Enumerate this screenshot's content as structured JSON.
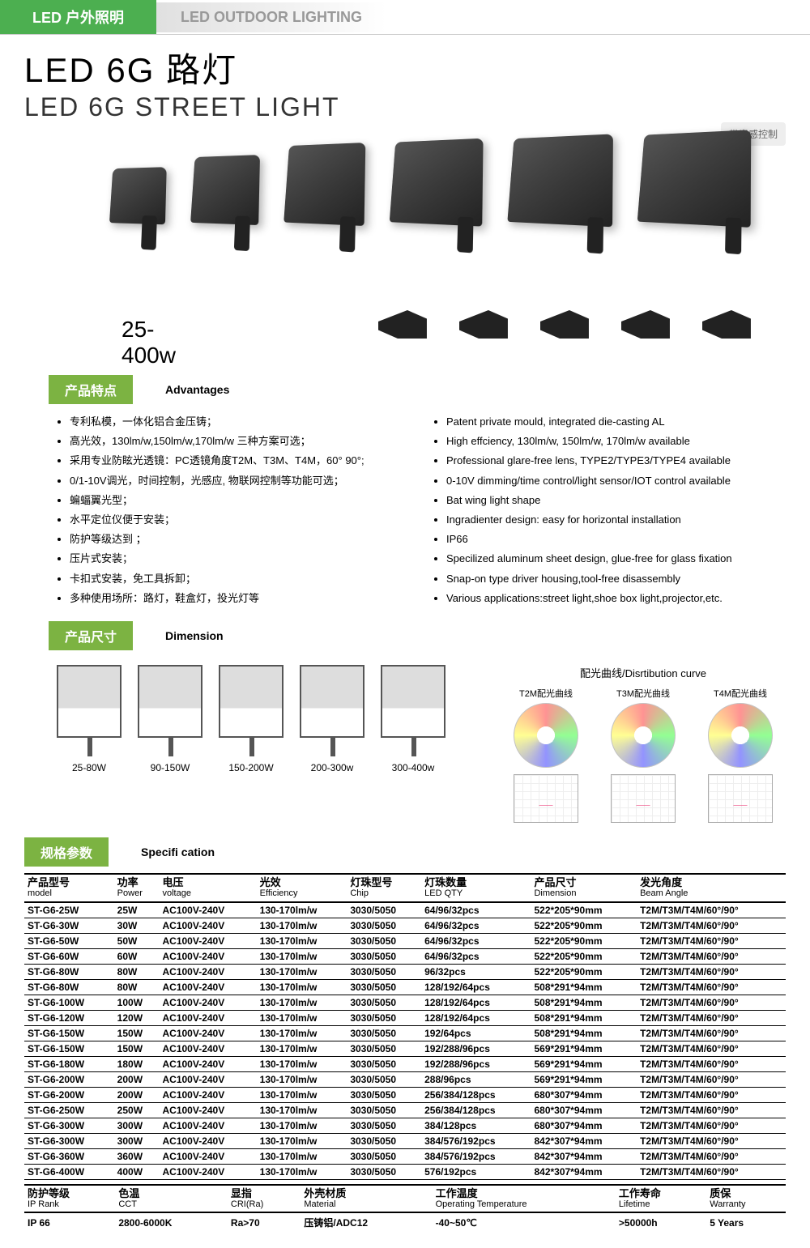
{
  "header": {
    "tab_cn": "LED 户外照明",
    "tab_en": "LED OUTDOOR LIGHTING",
    "title_cn": "LED 6G 路灯",
    "title_en": "LED 6G STREET LIGHT",
    "note": "带光感控制",
    "watt_range": "25-400w"
  },
  "sections": {
    "advantages_cn": "产品特点",
    "advantages_en": "Advantages",
    "dimension_cn": "产品尺寸",
    "dimension_en": "Dimension",
    "spec_cn": "规格参数",
    "spec_en": "Specifi cation"
  },
  "advantages": {
    "cn": [
      "专利私模，一体化铝合金压铸；",
      "高光效，130lm/w,150lm/w,170lm/w 三种方案可选；",
      "采用专业防眩光透镜：PC透镜角度T2M、T3M、T4M，60° 90°;",
      "0/1-10V调光，时间控制，光感应, 物联网控制等功能可选；",
      "蝙蝠翼光型；",
      "水平定位仪便于安装；",
      "防护等级达到    ；",
      "压片式安装；",
      "卡扣式安装，免工具拆卸；",
      "多种使用场所：路灯，鞋盒灯，投光灯等"
    ],
    "en": [
      "Patent private mould, integrated die-casting AL",
      "High effciency, 130lm/w, 150lm/w, 170lm/w available",
      "Professional glare-free lens, TYPE2/TYPE3/TYPE4 available",
      "0-10V dimming/time control/light sensor/IOT control available",
      "Bat wing light shape",
      "Ingradienter design: easy for horizontal installation",
      "IP66",
      "Specilized aluminum sheet design, glue-free for glass fixation",
      "Snap-on type driver housing,tool-free disassembly",
      "Various applications:street light,shoe box light,projector,etc."
    ]
  },
  "dimensions": {
    "labels": [
      "25-80W",
      "90-150W",
      "150-200W",
      "200-300w",
      "300-400w"
    ]
  },
  "distribution": {
    "title": "配光曲线/Disrtibution curve",
    "curves": [
      "T2M配光曲线",
      "T3M配光曲线",
      "T4M配光曲线"
    ]
  },
  "spec": {
    "headers": [
      {
        "cn": "产品型号",
        "en": "model"
      },
      {
        "cn": "功率",
        "en": "Power"
      },
      {
        "cn": "电压",
        "en": "voltage"
      },
      {
        "cn": "光效",
        "en": "Efficiency"
      },
      {
        "cn": "灯珠型号",
        "en": "Chip"
      },
      {
        "cn": "灯珠数量",
        "en": "LED QTY"
      },
      {
        "cn": "产品尺寸",
        "en": "Dimension"
      },
      {
        "cn": "发光角度",
        "en": "Beam Angle"
      }
    ],
    "rows": [
      [
        "ST-G6-25W",
        "25W",
        "AC100V-240V",
        "130-170lm/w",
        "3030/5050",
        "64/96/32pcs",
        "522*205*90mm",
        "T2M/T3M/T4M/60°/90°"
      ],
      [
        "ST-G6-30W",
        "30W",
        "AC100V-240V",
        "130-170lm/w",
        "3030/5050",
        "64/96/32pcs",
        "522*205*90mm",
        "T2M/T3M/T4M/60°/90°"
      ],
      [
        "ST-G6-50W",
        "50W",
        "AC100V-240V",
        "130-170lm/w",
        "3030/5050",
        "64/96/32pcs",
        "522*205*90mm",
        "T2M/T3M/T4M/60°/90°"
      ],
      [
        "ST-G6-60W",
        "60W",
        "AC100V-240V",
        "130-170lm/w",
        "3030/5050",
        "64/96/32pcs",
        "522*205*90mm",
        "T2M/T3M/T4M/60°/90°"
      ],
      [
        "ST-G6-80W",
        "80W",
        "AC100V-240V",
        "130-170lm/w",
        "3030/5050",
        "96/32pcs",
        "522*205*90mm",
        "T2M/T3M/T4M/60°/90°"
      ],
      [
        "ST-G6-80W",
        "80W",
        "AC100V-240V",
        "130-170lm/w",
        "3030/5050",
        "128/192/64pcs",
        "508*291*94mm",
        "T2M/T3M/T4M/60°/90°"
      ],
      [
        "ST-G6-100W",
        "100W",
        "AC100V-240V",
        "130-170lm/w",
        "3030/5050",
        "128/192/64pcs",
        "508*291*94mm",
        "T2M/T3M/T4M/60°/90°"
      ],
      [
        "ST-G6-120W",
        "120W",
        "AC100V-240V",
        "130-170lm/w",
        "3030/5050",
        "128/192/64pcs",
        "508*291*94mm",
        "T2M/T3M/T4M/60°/90°"
      ],
      [
        "ST-G6-150W",
        "150W",
        "AC100V-240V",
        "130-170lm/w",
        "3030/5050",
        "192/64pcs",
        "508*291*94mm",
        "T2M/T3M/T4M/60°/90°"
      ],
      [
        "ST-G6-150W",
        "150W",
        "AC100V-240V",
        "130-170lm/w",
        "3030/5050",
        "192/288/96pcs",
        "569*291*94mm",
        "T2M/T3M/T4M/60°/90°"
      ],
      [
        "ST-G6-180W",
        "180W",
        "AC100V-240V",
        "130-170lm/w",
        "3030/5050",
        "192/288/96pcs",
        "569*291*94mm",
        "T2M/T3M/T4M/60°/90°"
      ],
      [
        "ST-G6-200W",
        "200W",
        "AC100V-240V",
        "130-170lm/w",
        "3030/5050",
        "288/96pcs",
        "569*291*94mm",
        "T2M/T3M/T4M/60°/90°"
      ],
      [
        "ST-G6-200W",
        "200W",
        "AC100V-240V",
        "130-170lm/w",
        "3030/5050",
        "256/384/128pcs",
        "680*307*94mm",
        "T2M/T3M/T4M/60°/90°"
      ],
      [
        "ST-G6-250W",
        "250W",
        "AC100V-240V",
        "130-170lm/w",
        "3030/5050",
        "256/384/128pcs",
        "680*307*94mm",
        "T2M/T3M/T4M/60°/90°"
      ],
      [
        "ST-G6-300W",
        "300W",
        "AC100V-240V",
        "130-170lm/w",
        "3030/5050",
        "384/128pcs",
        "680*307*94mm",
        "T2M/T3M/T4M/60°/90°"
      ],
      [
        "ST-G6-300W",
        "300W",
        "AC100V-240V",
        "130-170lm/w",
        "3030/5050",
        "384/576/192pcs",
        "842*307*94mm",
        "T2M/T3M/T4M/60°/90°"
      ],
      [
        "ST-G6-360W",
        "360W",
        "AC100V-240V",
        "130-170lm/w",
        "3030/5050",
        "384/576/192pcs",
        "842*307*94mm",
        "T2M/T3M/T4M/60°/90°"
      ],
      [
        "ST-G6-400W",
        "400W",
        "AC100V-240V",
        "130-170lm/w",
        "3030/5050",
        "576/192pcs",
        "842*307*94mm",
        "T2M/T3M/T4M/60°/90°"
      ]
    ]
  },
  "footer": {
    "headers": [
      {
        "cn": "防护等级",
        "en": "IP Rank"
      },
      {
        "cn": "色温",
        "en": "CCT"
      },
      {
        "cn": "显指",
        "en": "CRI(Ra)"
      },
      {
        "cn": "外壳材质",
        "en": "Material"
      },
      {
        "cn": "工作温度",
        "en": "Operating Temperature"
      },
      {
        "cn": "工作寿命",
        "en": "Lifetime"
      },
      {
        "cn": "质保",
        "en": "Warranty"
      }
    ],
    "row": [
      "IP 66",
      "2800-6000K",
      "Ra>70",
      "压铸铝/ADC12",
      "-40~50℃",
      ">50000h",
      "5 Years"
    ]
  },
  "colors": {
    "green": "#7cb342",
    "gray_text": "#999999"
  }
}
